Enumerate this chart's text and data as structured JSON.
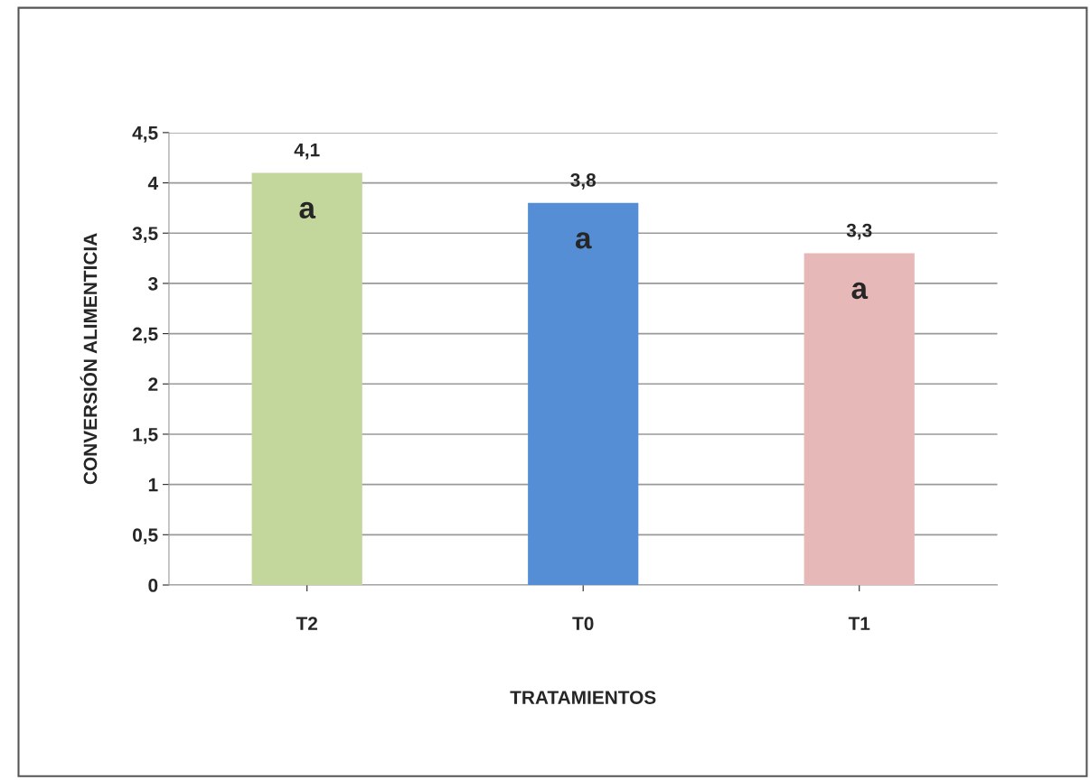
{
  "chart_data": {
    "type": "bar",
    "xlabel": "TRATAMIENTOS",
    "ylabel": "CONVERSIÓN ALIMENTICIA",
    "categories": [
      "T2",
      "T0",
      "T1"
    ],
    "values": [
      4.1,
      3.8,
      3.3
    ],
    "colors": [
      "#c3d69b",
      "#558ed5",
      "#e6b9b8"
    ],
    "value_labels": [
      "4,1",
      "3,8",
      "3,3"
    ],
    "ylim": [
      0,
      4.5
    ],
    "yticks": [
      0,
      {
        "value": 0.5,
        "label": "0,5"
      },
      1,
      {
        "value": 1.5,
        "label": "1,5"
      },
      2,
      {
        "value": 2.5,
        "label": "2,5"
      },
      3,
      {
        "value": 3.5,
        "label": "3,5"
      },
      4,
      {
        "value": 4.5,
        "label": "4,5"
      }
    ],
    "grid": "y",
    "annotations": [
      "a",
      "a",
      "a"
    ]
  }
}
